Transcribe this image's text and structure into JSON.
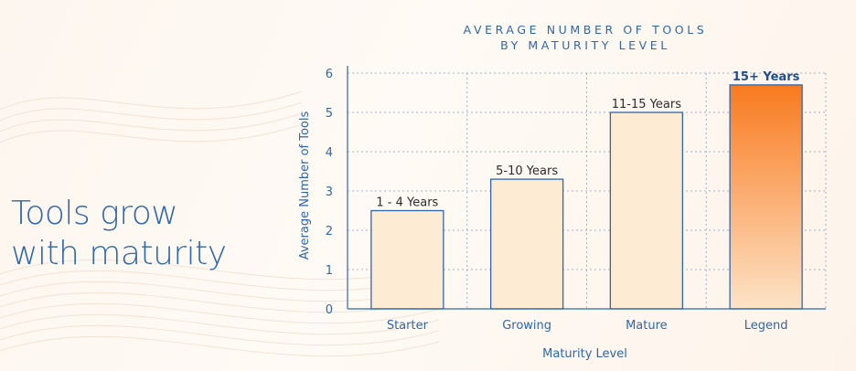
{
  "headline": {
    "line1": "Tools grow",
    "line2": "with maturity"
  },
  "chart_data": {
    "type": "bar",
    "title_lines": [
      "AVERAGE NUMBER OF TOOLS",
      "BY MATURITY LEVEL"
    ],
    "xlabel": "Maturity Level",
    "ylabel": "Average Number of Tools",
    "ylim": [
      0,
      6
    ],
    "yticks": [
      0,
      1,
      2,
      3,
      4,
      5,
      6
    ],
    "categories": [
      "Starter",
      "Growing",
      "Mature",
      "Legend"
    ],
    "values": [
      2.5,
      3.3,
      5.0,
      5.7
    ],
    "bar_labels": [
      "1 - 4 Years",
      "5-10 Years",
      "11-15 Years",
      "15+ Years"
    ],
    "grid": true,
    "highlight_index": 3
  },
  "colors": {
    "accent": "#2e67ad",
    "bar_fill": "#fdebd3",
    "bar_stroke": "#2e67ad",
    "highlight_top": "#f87a1f",
    "highlight_bottom": "#fde3c7",
    "grid": "#9db4d0"
  }
}
